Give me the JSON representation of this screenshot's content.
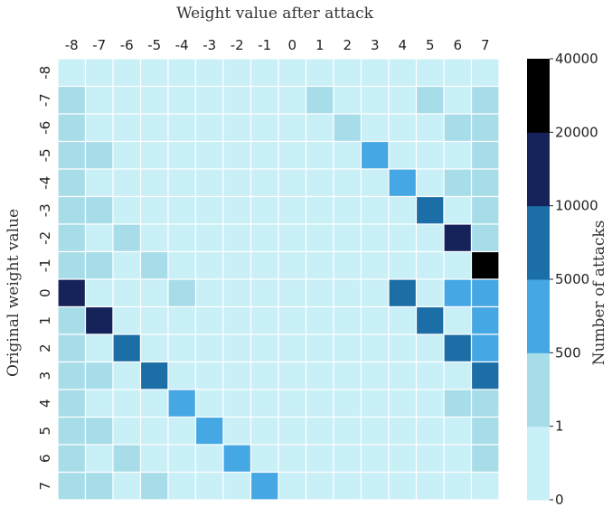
{
  "chart_data": {
    "type": "heatmap",
    "xlabel": "Weight value after attack",
    "ylabel": "Original weight value",
    "x_categories": [
      "-8",
      "-7",
      "-6",
      "-5",
      "-4",
      "-3",
      "-2",
      "-1",
      "0",
      "1",
      "2",
      "3",
      "4",
      "5",
      "6",
      "7"
    ],
    "y_categories": [
      "-8",
      "-7",
      "-6",
      "-5",
      "-4",
      "-3",
      "-2",
      "-1",
      "0",
      "1",
      "2",
      "3",
      "4",
      "5",
      "6",
      "7"
    ],
    "color_levels": [
      0,
      1,
      500,
      5000,
      10000,
      20000,
      40000
    ],
    "level_colors": [
      "#c9eff7",
      "#a7dde9",
      "#45a7e3",
      "#1c6ea6",
      "#16225a",
      "#000000"
    ],
    "colorbar_label": "Number of attacks",
    "colorbar_ticks": [
      "0",
      "1",
      "500",
      "5000",
      "10000",
      "20000",
      "40000"
    ],
    "matrix_level_index": [
      [
        0,
        0,
        0,
        0,
        0,
        0,
        0,
        0,
        0,
        0,
        0,
        0,
        0,
        0,
        0,
        0
      ],
      [
        1,
        0,
        0,
        0,
        0,
        0,
        0,
        0,
        0,
        1,
        0,
        0,
        0,
        1,
        0,
        1
      ],
      [
        1,
        0,
        0,
        0,
        0,
        0,
        0,
        0,
        0,
        0,
        1,
        0,
        0,
        0,
        1,
        1
      ],
      [
        1,
        1,
        0,
        0,
        0,
        0,
        0,
        0,
        0,
        0,
        0,
        2,
        0,
        0,
        0,
        1
      ],
      [
        1,
        0,
        0,
        0,
        0,
        0,
        0,
        0,
        0,
        0,
        0,
        0,
        2,
        0,
        1,
        1
      ],
      [
        1,
        1,
        0,
        0,
        0,
        0,
        0,
        0,
        0,
        0,
        0,
        0,
        0,
        3,
        0,
        1
      ],
      [
        1,
        0,
        1,
        0,
        0,
        0,
        0,
        0,
        0,
        0,
        0,
        0,
        0,
        0,
        4,
        1
      ],
      [
        1,
        1,
        0,
        1,
        0,
        0,
        0,
        0,
        0,
        0,
        0,
        0,
        0,
        0,
        0,
        5
      ],
      [
        4,
        0,
        0,
        0,
        1,
        0,
        0,
        0,
        0,
        0,
        0,
        0,
        3,
        0,
        2,
        2
      ],
      [
        1,
        4,
        0,
        0,
        0,
        0,
        0,
        0,
        0,
        0,
        0,
        0,
        0,
        3,
        0,
        2
      ],
      [
        1,
        0,
        3,
        0,
        0,
        0,
        0,
        0,
        0,
        0,
        0,
        0,
        0,
        0,
        3,
        2
      ],
      [
        1,
        1,
        0,
        3,
        0,
        0,
        0,
        0,
        0,
        0,
        0,
        0,
        0,
        0,
        0,
        3
      ],
      [
        1,
        0,
        0,
        0,
        2,
        0,
        0,
        0,
        0,
        0,
        0,
        0,
        0,
        0,
        1,
        1
      ],
      [
        1,
        1,
        0,
        0,
        0,
        2,
        0,
        0,
        0,
        0,
        0,
        0,
        0,
        0,
        0,
        1
      ],
      [
        1,
        0,
        1,
        0,
        0,
        0,
        2,
        0,
        0,
        0,
        0,
        0,
        0,
        0,
        0,
        1
      ],
      [
        1,
        1,
        0,
        1,
        0,
        0,
        0,
        2,
        0,
        0,
        0,
        0,
        0,
        0,
        0,
        0
      ]
    ]
  }
}
